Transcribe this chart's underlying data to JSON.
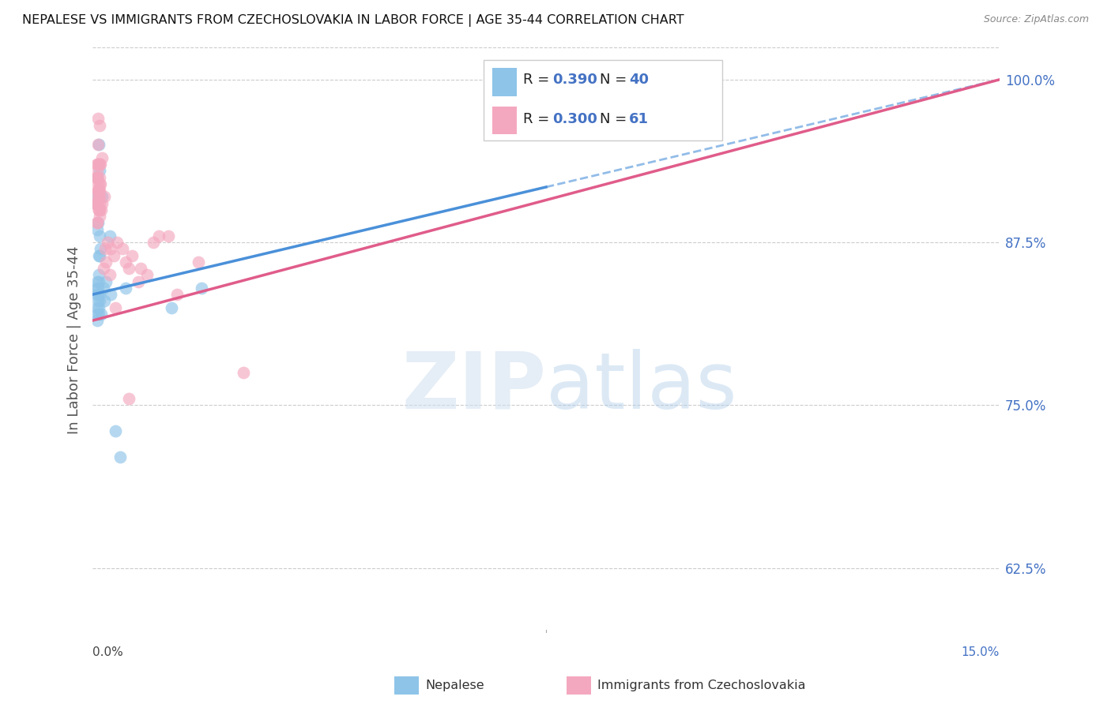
{
  "title": "NEPALESE VS IMMIGRANTS FROM CZECHOSLOVAKIA IN LABOR FORCE | AGE 35-44 CORRELATION CHART",
  "source": "Source: ZipAtlas.com",
  "ylabel": "In Labor Force | Age 35-44",
  "right_yticks": [
    62.5,
    75.0,
    87.5,
    100.0
  ],
  "right_ytick_labels": [
    "62.5%",
    "75.0%",
    "87.5%",
    "100.0%"
  ],
  "xmin": 0.0,
  "xmax": 15.0,
  "ymin": 57.5,
  "ymax": 102.5,
  "legend_R1": "0.390",
  "legend_N1": "40",
  "legend_R2": "0.300",
  "legend_N2": "61",
  "blue_color": "#8ec4e8",
  "pink_color": "#f4a8bf",
  "trend_blue_color": "#4a90d9",
  "trend_pink_color": "#e05c8a",
  "watermark_zip": "ZIP",
  "watermark_atlas": "atlas",
  "blue_trend_x0": 0.0,
  "blue_trend_y0": 83.5,
  "blue_trend_x1": 15.0,
  "blue_trend_y1": 100.0,
  "pink_trend_x0": 0.0,
  "pink_trend_y0": 81.5,
  "pink_trend_x1": 15.0,
  "pink_trend_y1": 100.0,
  "nepalese_x": [
    0.05,
    0.08,
    0.1,
    0.12,
    0.15,
    0.08,
    0.1,
    0.06,
    0.09,
    0.11,
    0.07,
    0.13,
    0.09,
    0.1,
    0.08,
    0.12,
    0.1,
    0.09,
    0.11,
    0.07,
    0.14,
    0.08,
    0.1,
    0.09,
    0.07,
    0.11,
    0.08,
    0.1,
    0.55,
    0.28,
    0.18,
    0.22,
    0.2,
    0.3,
    1.3,
    1.8,
    0.45,
    0.38,
    9.8,
    7.5
  ],
  "nepalese_y": [
    91.0,
    92.5,
    95.0,
    93.0,
    91.0,
    88.5,
    86.5,
    90.5,
    89.0,
    88.0,
    84.5,
    87.0,
    83.5,
    85.0,
    84.0,
    86.5,
    82.5,
    83.0,
    83.5,
    82.0,
    82.0,
    83.5,
    84.5,
    84.0,
    81.5,
    83.0,
    82.5,
    82.0,
    84.0,
    88.0,
    84.0,
    84.5,
    83.0,
    83.5,
    82.5,
    84.0,
    71.0,
    73.0,
    100.0,
    97.5
  ],
  "czech_x": [
    0.05,
    0.07,
    0.09,
    0.12,
    0.15,
    0.08,
    0.11,
    0.06,
    0.1,
    0.08,
    0.13,
    0.1,
    0.09,
    0.12,
    0.07,
    0.11,
    0.09,
    0.08,
    0.1,
    0.12,
    0.06,
    0.1,
    0.11,
    0.09,
    0.08,
    0.12,
    0.1,
    0.08,
    0.09,
    0.07,
    0.14,
    0.11,
    0.09,
    0.13,
    0.08,
    0.11,
    0.16,
    0.19,
    0.25,
    0.3,
    0.4,
    0.5,
    0.6,
    0.75,
    0.9,
    1.0,
    1.25,
    0.22,
    0.28,
    0.35,
    0.38,
    0.55,
    0.65,
    0.8,
    1.1,
    1.4,
    1.75,
    2.5,
    0.18,
    0.21,
    0.6
  ],
  "czech_y": [
    90.5,
    93.5,
    97.0,
    96.5,
    94.0,
    91.0,
    93.5,
    92.5,
    91.5,
    93.0,
    92.0,
    90.0,
    91.5,
    90.0,
    92.5,
    91.0,
    95.0,
    92.5,
    90.0,
    91.5,
    90.5,
    93.5,
    92.0,
    91.5,
    89.0,
    92.5,
    91.0,
    93.5,
    91.5,
    90.5,
    90.0,
    89.5,
    92.0,
    93.5,
    89.0,
    90.5,
    90.5,
    91.0,
    87.5,
    87.0,
    87.5,
    87.0,
    85.5,
    84.5,
    85.0,
    87.5,
    88.0,
    86.0,
    85.0,
    86.5,
    82.5,
    86.0,
    86.5,
    85.5,
    88.0,
    83.5,
    86.0,
    77.5,
    85.5,
    87.0,
    75.5
  ]
}
